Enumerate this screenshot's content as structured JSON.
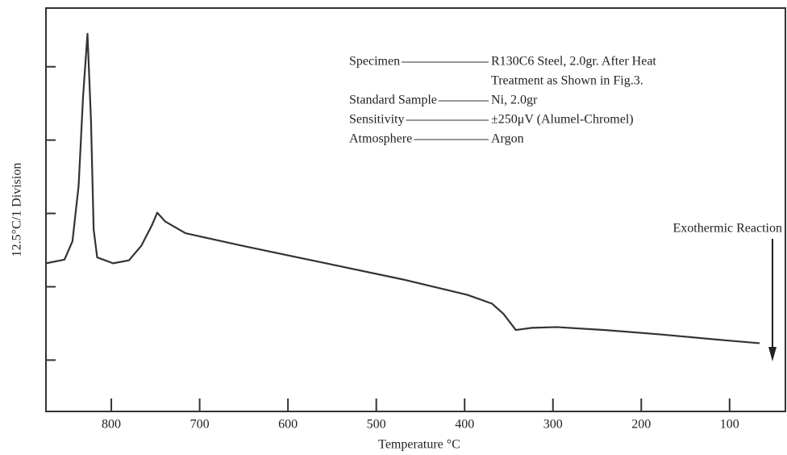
{
  "chart_data": {
    "type": "line",
    "x_label": "Temperature °C",
    "y_label": "12.5°C/1 Division",
    "xlim": [
      874,
      35
    ],
    "xticks": [
      800,
      700,
      600,
      500,
      400,
      300,
      200,
      100
    ],
    "ylim": [
      0.3,
      5.8
    ],
    "yticks": [
      1,
      2,
      3,
      4,
      5
    ],
    "x": [
      874,
      853,
      844,
      837,
      832,
      827,
      823,
      820,
      816,
      798,
      780,
      766,
      754,
      748,
      739,
      716,
      652,
      561,
      470,
      397,
      369,
      356,
      342,
      324,
      296,
      241,
      178,
      105,
      66
    ],
    "series": [
      {
        "color": "#333333",
        "values": [
          2.32,
          2.37,
          2.62,
          3.38,
          4.59,
          5.45,
          4.26,
          2.78,
          2.4,
          2.32,
          2.36,
          2.56,
          2.84,
          3.01,
          2.89,
          2.73,
          2.56,
          2.33,
          2.1,
          1.89,
          1.77,
          1.63,
          1.41,
          1.44,
          1.45,
          1.41,
          1.35,
          1.27,
          1.23
        ]
      }
    ],
    "annotations": [
      {
        "label": "Specimen",
        "lines": [
          "R130C6 Steel, 2.0gr. After Heat",
          "Treatment as Shown in Fig.3."
        ]
      },
      {
        "label": "Standard Sample",
        "lines": [
          "Ni, 2.0gr"
        ]
      },
      {
        "label": "Sensitivity",
        "lines": [
          "±250μV (Alumel-Chromel)"
        ]
      },
      {
        "label": "Atmosphere",
        "lines": [
          "Argon"
        ]
      }
    ],
    "arrow_label": "Exothermic Reaction"
  }
}
